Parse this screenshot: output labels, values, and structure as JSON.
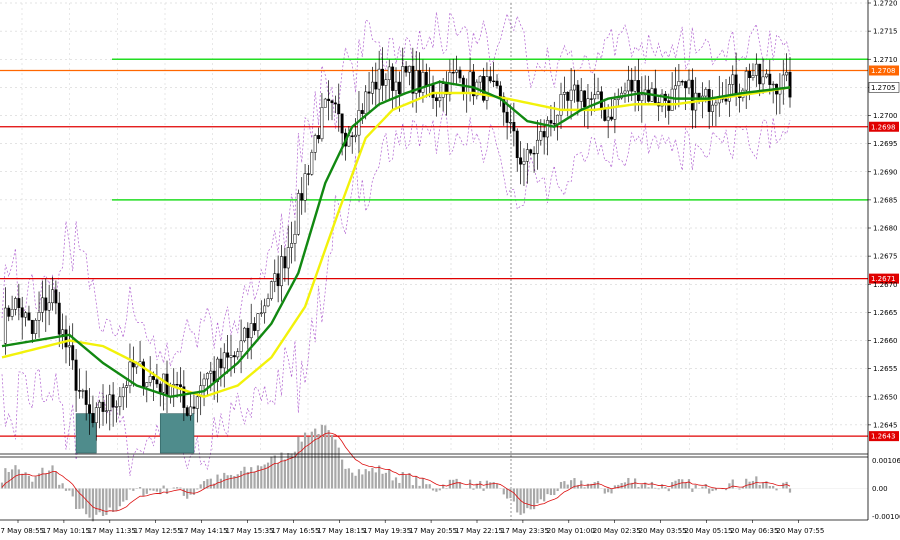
{
  "chart_data": {
    "type": "candlestick",
    "price_axis": {
      "ylim": [
        1.264,
        1.272
      ],
      "ticks": [
        "1.2720",
        "1.2715",
        "1.2710",
        "1.2705",
        "1.2700",
        "1.2695",
        "1.2690",
        "1.2685",
        "1.2680",
        "1.2675",
        "1.2670",
        "1.2665",
        "1.2660",
        "1.2655",
        "1.2650",
        "1.2645"
      ]
    },
    "current_price": "1.2705",
    "levels": [
      {
        "label": "1.2708",
        "value": 1.2708,
        "color": "#ff6600"
      },
      {
        "label": "1.2698",
        "value": 1.2698,
        "color": "#e00000"
      },
      {
        "label": "1.2671",
        "value": 1.2671,
        "color": "#e00000"
      },
      {
        "label": "1.2643",
        "value": 1.2643,
        "color": "#e00000"
      }
    ],
    "green_levels": [
      1.271,
      1.2685
    ],
    "x_ticks": [
      "17 May 08:55",
      "17 May 10:15",
      "17 May 11:35",
      "17 May 12:55",
      "17 May 14:15",
      "17 May 15:35",
      "17 May 16:55",
      "17 May 18:15",
      "17 May 19:35",
      "17 May 20:55",
      "17 May 22:15",
      "17 May 23:35",
      "20 May 01:00",
      "20 May 02:35",
      "20 May 03:55",
      "20 May 05:15",
      "20 May 06:35",
      "20 May 07:55"
    ],
    "session_divider": "20 May 00:00",
    "close_path": [
      [
        0,
        1.2662
      ],
      [
        3,
        1.2667
      ],
      [
        6,
        1.2665
      ],
      [
        9,
        1.2661
      ],
      [
        12,
        1.2666
      ],
      [
        15,
        1.2668
      ],
      [
        18,
        1.2661
      ],
      [
        21,
        1.2655
      ],
      [
        24,
        1.2649
      ],
      [
        27,
        1.2645
      ],
      [
        30,
        1.2648
      ],
      [
        33,
        1.2649
      ],
      [
        36,
        1.2652
      ],
      [
        39,
        1.2655
      ],
      [
        42,
        1.2654
      ],
      [
        45,
        1.2653
      ],
      [
        48,
        1.2652
      ],
      [
        51,
        1.2653
      ],
      [
        54,
        1.2648
      ],
      [
        57,
        1.2649
      ],
      [
        60,
        1.2654
      ],
      [
        63,
        1.2654
      ],
      [
        66,
        1.2656
      ],
      [
        69,
        1.2657
      ],
      [
        72,
        1.266
      ],
      [
        75,
        1.2663
      ],
      [
        78,
        1.2667
      ],
      [
        81,
        1.267
      ],
      [
        84,
        1.2675
      ],
      [
        87,
        1.2681
      ],
      [
        90,
        1.2689
      ],
      [
        93,
        1.2696
      ],
      [
        96,
        1.2701
      ],
      [
        99,
        1.27
      ],
      [
        102,
        1.2697
      ],
      [
        105,
        1.2699
      ],
      [
        108,
        1.2703
      ],
      [
        111,
        1.2706
      ],
      [
        114,
        1.2707
      ],
      [
        117,
        1.2706
      ],
      [
        120,
        1.2707
      ],
      [
        123,
        1.2706
      ],
      [
        126,
        1.2705
      ],
      [
        129,
        1.2704
      ],
      [
        132,
        1.2706
      ],
      [
        135,
        1.2707
      ],
      [
        138,
        1.2706
      ],
      [
        141,
        1.2705
      ],
      [
        144,
        1.2705
      ],
      [
        147,
        1.2703
      ],
      [
        150,
        1.27
      ],
      [
        153,
        1.2693
      ],
      [
        156,
        1.2692
      ],
      [
        159,
        1.2695
      ],
      [
        162,
        1.2698
      ],
      [
        165,
        1.2701
      ],
      [
        168,
        1.2702
      ],
      [
        171,
        1.2704
      ],
      [
        174,
        1.2703
      ],
      [
        177,
        1.2702
      ],
      [
        180,
        1.27
      ],
      [
        183,
        1.2703
      ],
      [
        186,
        1.2705
      ],
      [
        189,
        1.2705
      ],
      [
        192,
        1.2704
      ],
      [
        195,
        1.2703
      ],
      [
        198,
        1.2703
      ],
      [
        201,
        1.2704
      ],
      [
        204,
        1.2704
      ],
      [
        207,
        1.2702
      ],
      [
        210,
        1.2703
      ],
      [
        213,
        1.2705
      ],
      [
        216,
        1.2705
      ],
      [
        219,
        1.2705
      ],
      [
        222,
        1.2708
      ],
      [
        225,
        1.2706
      ],
      [
        228,
        1.2706
      ],
      [
        231,
        1.2706
      ],
      [
        234,
        1.2705
      ]
    ],
    "ma_fast": [
      [
        0,
        1.2659
      ],
      [
        20,
        1.2661
      ],
      [
        30,
        1.2656
      ],
      [
        40,
        1.2652
      ],
      [
        50,
        1.265
      ],
      [
        60,
        1.2651
      ],
      [
        70,
        1.2656
      ],
      [
        80,
        1.2663
      ],
      [
        88,
        1.2672
      ],
      [
        96,
        1.2688
      ],
      [
        104,
        1.2698
      ],
      [
        112,
        1.2702
      ],
      [
        120,
        1.2704
      ],
      [
        130,
        1.2706
      ],
      [
        140,
        1.2705
      ],
      [
        148,
        1.2703
      ],
      [
        156,
        1.2699
      ],
      [
        164,
        1.2698
      ],
      [
        172,
        1.2701
      ],
      [
        180,
        1.2703
      ],
      [
        190,
        1.2704
      ],
      [
        200,
        1.2703
      ],
      [
        210,
        1.2703
      ],
      [
        220,
        1.2704
      ],
      [
        234,
        1.2705
      ]
    ],
    "ma_slow": [
      [
        0,
        1.2657
      ],
      [
        20,
        1.266
      ],
      [
        30,
        1.2659
      ],
      [
        40,
        1.2656
      ],
      [
        50,
        1.2652
      ],
      [
        60,
        1.265
      ],
      [
        70,
        1.2652
      ],
      [
        80,
        1.2657
      ],
      [
        90,
        1.2666
      ],
      [
        100,
        1.2683
      ],
      [
        108,
        1.2696
      ],
      [
        116,
        1.2701
      ],
      [
        128,
        1.2704
      ],
      [
        140,
        1.2704
      ],
      [
        150,
        1.2703
      ],
      [
        158,
        1.2702
      ],
      [
        166,
        1.2701
      ],
      [
        176,
        1.2701
      ],
      [
        188,
        1.2702
      ],
      [
        200,
        1.2702
      ],
      [
        212,
        1.2703
      ],
      [
        224,
        1.2704
      ],
      [
        234,
        1.2705
      ]
    ],
    "boxes": [
      {
        "from": 22,
        "to": 28,
        "low": 1.264,
        "high": 1.2647
      },
      {
        "from": 47,
        "to": 57,
        "low": 1.264,
        "high": 1.2647
      }
    ],
    "oscillator": {
      "ticks": [
        "0.00106",
        "0.00",
        "-0.00106"
      ],
      "ylim": [
        -0.0012,
        0.0012
      ]
    }
  }
}
